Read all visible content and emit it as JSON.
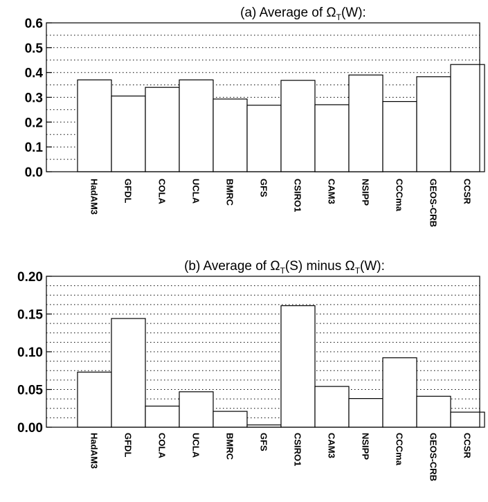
{
  "chart_data": [
    {
      "type": "bar",
      "title": "(a) Average of Ω",
      "title_sub": "T",
      "title_suffix": "(W):",
      "categories": [
        "HadAM3",
        "GFDL",
        "COLA",
        "UCLA",
        "BMRC",
        "GFS",
        "CSIRO1",
        "CAM3",
        "NSIPP",
        "CCCma",
        "GEOS-CRB",
        "CCSR"
      ],
      "values": [
        0.37,
        0.305,
        0.34,
        0.37,
        0.293,
        0.268,
        0.368,
        0.27,
        0.39,
        0.283,
        0.383,
        0.432
      ],
      "ylim": [
        0,
        0.6
      ],
      "yticks": [
        "0.0",
        "0.1",
        "0.2",
        "0.3",
        "0.4",
        "0.5",
        "0.6"
      ],
      "grid": true
    },
    {
      "type": "bar",
      "title": "(b) Average of Ω",
      "title_sub": "T",
      "title_mid": "(S) minus Ω",
      "title_sub2": "T",
      "title_suffix": "(W):",
      "categories": [
        "HadAM3",
        "GFDL",
        "COLA",
        "UCLA",
        "BMRC",
        "GFS",
        "CSIRO1",
        "CAM3",
        "NSIPP",
        "CCCma",
        "GEOS-CRB",
        "CCSR"
      ],
      "values": [
        0.073,
        0.144,
        0.028,
        0.047,
        0.021,
        0.003,
        0.161,
        0.054,
        0.038,
        0.092,
        0.041,
        0.02
      ],
      "ylim": [
        0,
        0.2
      ],
      "yticks": [
        "0.00",
        "0.05",
        "0.10",
        "0.15",
        "0.20"
      ],
      "grid": true
    }
  ]
}
